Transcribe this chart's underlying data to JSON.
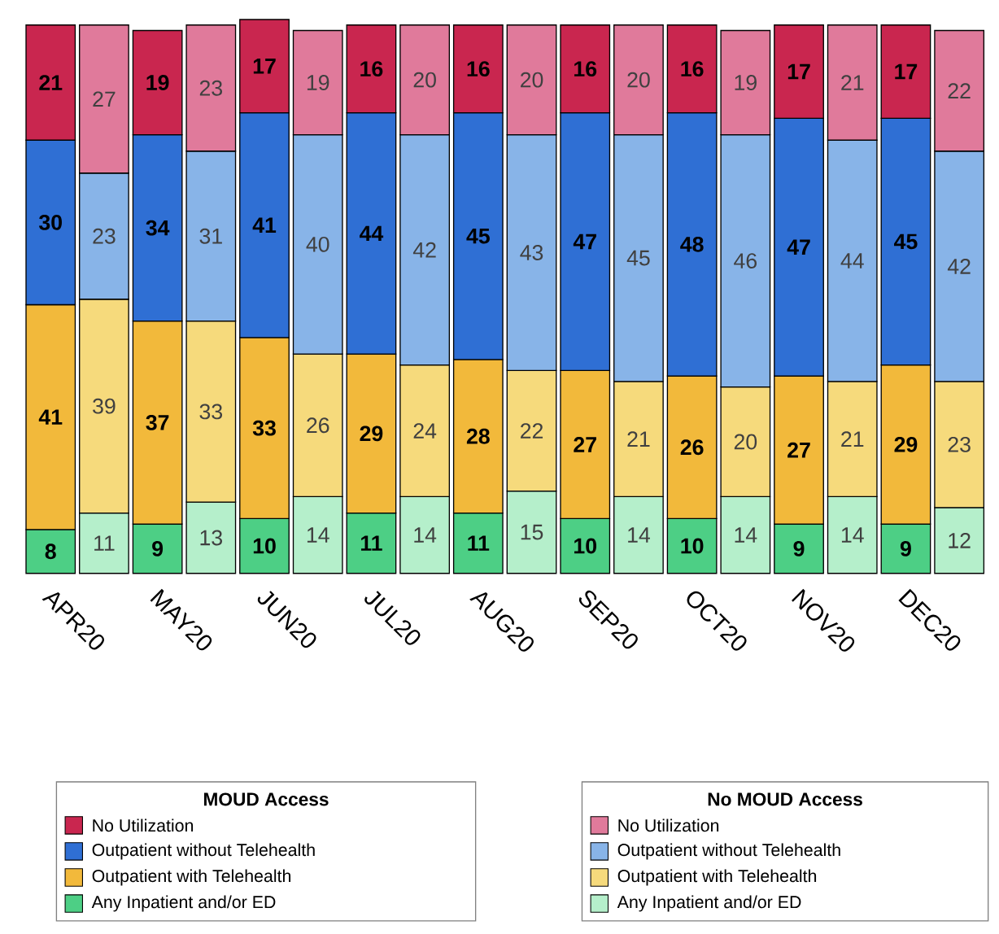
{
  "chart_data": {
    "type": "bar",
    "stacked": true,
    "data_labels": true,
    "legend": "bottom",
    "legend_title": "MOUD Access",
    "annotations": [
      "No MOUD Access"
    ],
    "categories": [
      "APR20",
      null,
      "MAY20",
      null,
      "JUN20",
      null,
      "JUL20",
      null,
      "AUG20",
      null,
      "SEP20",
      null,
      "OCT20",
      null,
      "NOV20",
      null,
      "DEC20",
      null
    ],
    "series": [
      {
        "name": "Any Inpatient and/or ED",
        "color": "#4dcf85",
        "values": [
          8,
          null,
          9,
          null,
          10,
          null,
          11,
          null,
          11,
          null,
          10,
          null,
          10,
          null,
          9,
          null,
          9,
          null
        ]
      },
      {
        "name": "Outpatient with Telehealth",
        "color": "#f2b93b",
        "values": [
          41,
          null,
          37,
          null,
          33,
          null,
          29,
          null,
          28,
          null,
          27,
          null,
          26,
          null,
          27,
          null,
          29,
          null
        ]
      },
      {
        "name": "Outpatient without Telehealth",
        "color": "#2f6fd4",
        "values": [
          30,
          null,
          34,
          null,
          41,
          null,
          44,
          null,
          45,
          null,
          47,
          null,
          48,
          null,
          47,
          null,
          45,
          null
        ]
      },
      {
        "name": "No Utilization",
        "color": "#c9264f",
        "values": [
          21,
          null,
          19,
          null,
          17,
          null,
          16,
          null,
          16,
          null,
          16,
          null,
          16,
          null,
          17,
          null,
          17,
          null
        ]
      },
      {
        "name": "Any Inpatient and/or ED",
        "color": "#b5efcb",
        "values": [
          null,
          11,
          null,
          13,
          null,
          14,
          null,
          14,
          null,
          15,
          null,
          14,
          null,
          14,
          null,
          14,
          null,
          12
        ]
      },
      {
        "name": "Outpatient with Telehealth",
        "color": "#f6da7c",
        "values": [
          null,
          39,
          null,
          33,
          null,
          26,
          null,
          24,
          null,
          22,
          null,
          21,
          null,
          20,
          null,
          21,
          null,
          23
        ]
      },
      {
        "name": "Outpatient without Telehealth",
        "color": "#88b4e8",
        "values": [
          null,
          23,
          null,
          31,
          null,
          40,
          null,
          42,
          null,
          43,
          null,
          45,
          null,
          46,
          null,
          44,
          null,
          42
        ]
      },
      {
        "name": "No Utilization",
        "color": "#e07a9b",
        "values": [
          null,
          27,
          null,
          23,
          null,
          19,
          null,
          20,
          null,
          20,
          null,
          20,
          null,
          19,
          null,
          21,
          null,
          22
        ]
      }
    ]
  }
}
